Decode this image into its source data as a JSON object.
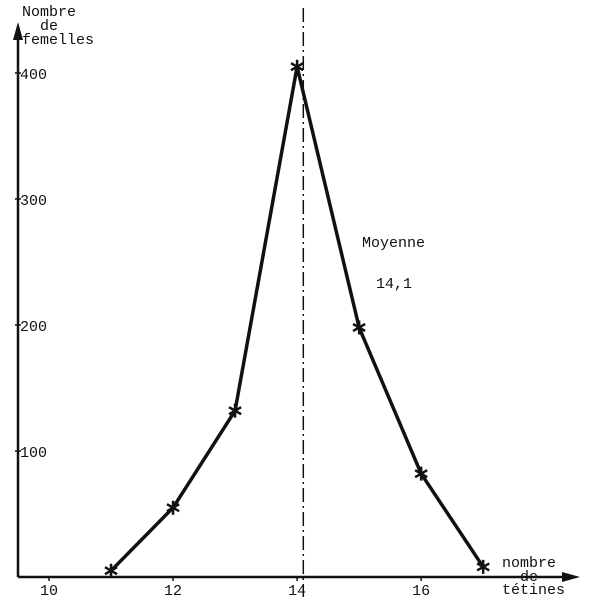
{
  "chart_data": {
    "type": "line",
    "ylabel": [
      "Nombre",
      "de",
      "femelles"
    ],
    "xlabel": [
      "nombre",
      "de",
      "tétines"
    ],
    "x": [
      11,
      12,
      13,
      14,
      15,
      16,
      17
    ],
    "values": [
      5,
      55,
      132,
      405,
      198,
      82,
      8
    ],
    "color": "#111111",
    "xlim": [
      9.5,
      18.4
    ],
    "xticks": [
      10,
      12,
      14,
      16
    ],
    "ylim": [
      0,
      450
    ],
    "yticks": [
      100,
      200,
      300,
      400
    ],
    "mean_line": {
      "name": "Moyenne",
      "value": 14.1,
      "label": "14,1"
    }
  }
}
